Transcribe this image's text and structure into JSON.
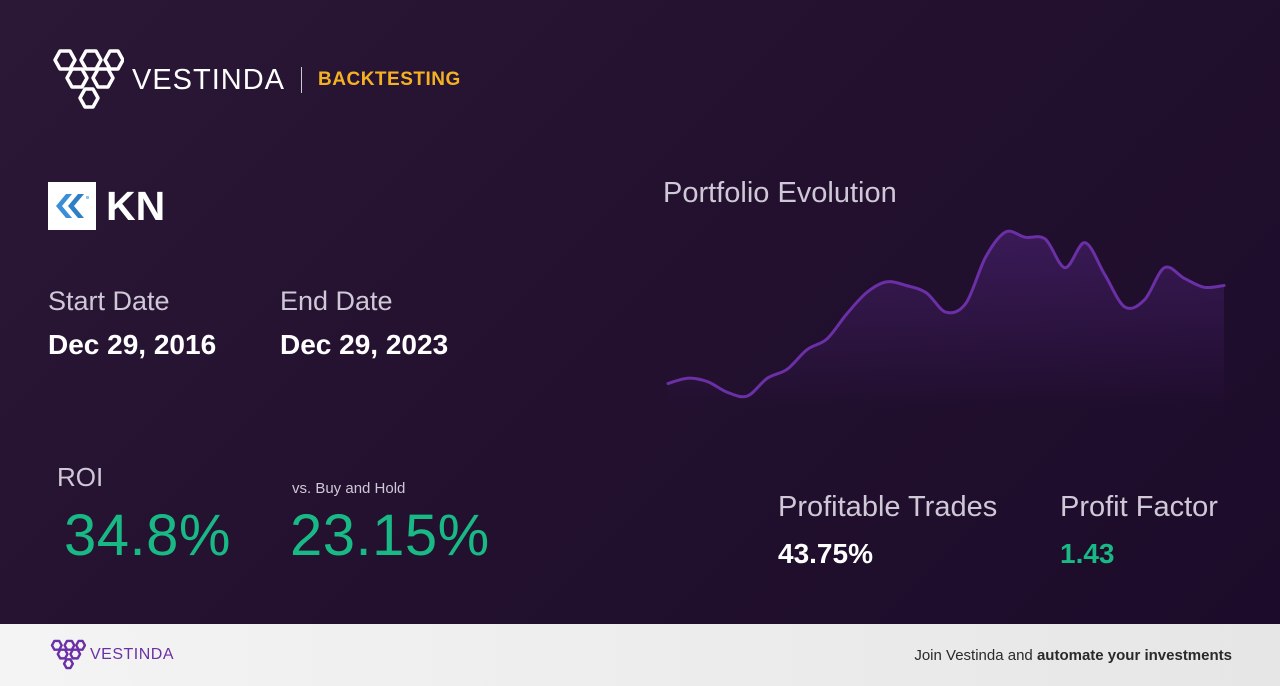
{
  "brand": {
    "name": "VESTINDA",
    "tag": "BACKTESTING"
  },
  "ticker": {
    "symbol": "KN"
  },
  "dates": {
    "start_label": "Start Date",
    "start_value": "Dec 29, 2016",
    "end_label": "End Date",
    "end_value": "Dec 29, 2023"
  },
  "roi": {
    "label": "ROI",
    "value": "34.8%"
  },
  "buy_hold": {
    "label": "vs. Buy and Hold",
    "value": "23.15%"
  },
  "chart": {
    "title": "Portfolio Evolution",
    "line_color": "#6b2fa6"
  },
  "chart_data": {
    "type": "line",
    "title": "Portfolio Evolution",
    "series": [
      {
        "values": [
          0.35,
          0.5,
          0.4,
          0.1,
          0.0,
          0.5,
          0.75,
          1.3,
          1.6,
          2.3,
          2.9,
          3.2,
          3.1,
          2.9,
          2.35,
          2.6,
          3.9,
          4.6,
          4.45,
          4.4,
          3.6,
          4.3,
          3.4,
          2.5,
          2.7,
          3.6,
          3.3,
          3.05,
          3.1
        ]
      }
    ]
  },
  "stats": {
    "profitable_label": "Profitable Trades",
    "profitable_value": "43.75%",
    "factor_label": "Profit Factor",
    "factor_value": "1.43"
  },
  "colors": {
    "accent": "#f4b223",
    "positive": "#19b985",
    "brand_purple": "#6b2fa6"
  },
  "footer": {
    "name": "VESTINDA",
    "cta_prefix": "Join Vestinda and ",
    "cta_bold": "automate your investments"
  }
}
